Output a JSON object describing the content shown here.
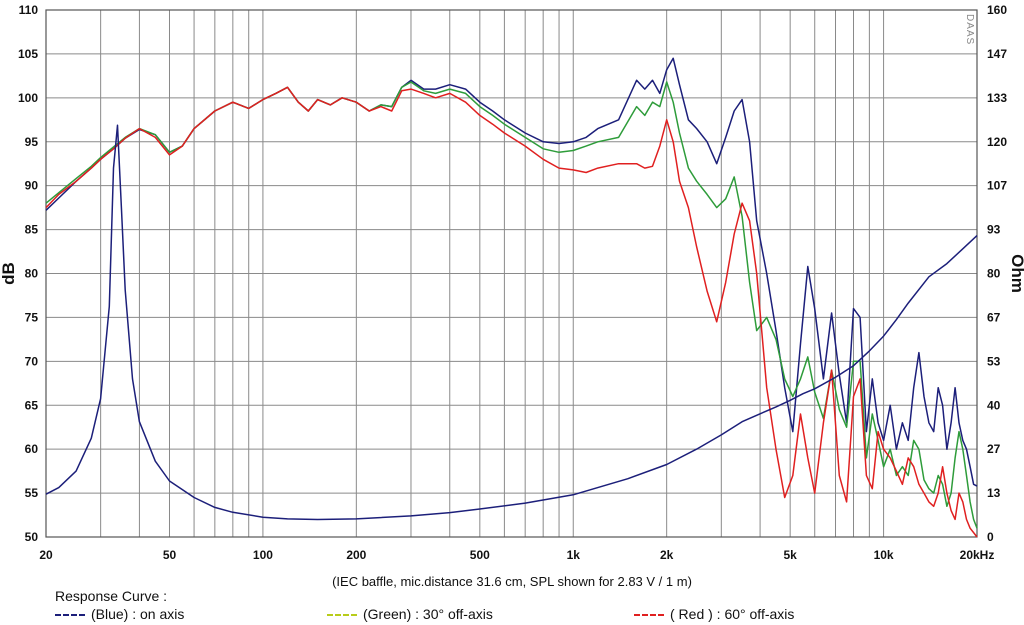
{
  "chart_data": {
    "type": "line",
    "ylabel": "dB",
    "y2label": "Ohm",
    "xlim": [
      20,
      20000
    ],
    "ylim": [
      50,
      110
    ],
    "y2lim": [
      0,
      160
    ],
    "x_scale": "log",
    "grid": true,
    "x_tick_labels": [
      {
        "value": 20,
        "label": "20"
      },
      {
        "value": 50,
        "label": "50"
      },
      {
        "value": 100,
        "label": "100"
      },
      {
        "value": 200,
        "label": "200"
      },
      {
        "value": 500,
        "label": "500"
      },
      {
        "value": 1000,
        "label": "1k"
      },
      {
        "value": 2000,
        "label": "2k"
      },
      {
        "value": 5000,
        "label": "5k"
      },
      {
        "value": 10000,
        "label": "10k"
      },
      {
        "value": 20000,
        "label": "20kHz"
      }
    ],
    "y_ticks": [
      "110",
      "105",
      "100",
      "95",
      "90",
      "85",
      "80",
      "75",
      "70",
      "65",
      "60",
      "55",
      "50"
    ],
    "y2_ticks": [
      "160",
      "147",
      "133",
      "120",
      "107",
      "93",
      "80",
      "67",
      "53",
      "40",
      "27",
      "13",
      "0"
    ],
    "series": [
      {
        "name": "on axis",
        "color": "#1c1f7a",
        "axis": "left",
        "x": [
          20,
          22,
          25,
          28,
          30,
          33,
          36,
          40,
          45,
          50,
          55,
          60,
          70,
          80,
          90,
          100,
          110,
          120,
          130,
          140,
          150,
          165,
          180,
          200,
          220,
          240,
          260,
          280,
          300,
          330,
          360,
          400,
          450,
          500,
          550,
          600,
          700,
          800,
          900,
          1000,
          1100,
          1200,
          1400,
          1600,
          1700,
          1800,
          1900,
          2000,
          2100,
          2200,
          2350,
          2500,
          2700,
          2900,
          3100,
          3300,
          3500,
          3700,
          3900,
          4200,
          4500,
          4800,
          5100,
          5400,
          5700,
          6000,
          6400,
          6800,
          7200,
          7600,
          8000,
          8400,
          8800,
          9200,
          9600,
          10000,
          10500,
          11000,
          11500,
          12000,
          12500,
          13000,
          13500,
          14000,
          14500,
          15000,
          15500,
          16000,
          16500,
          17000,
          17500,
          18000,
          18500,
          19000,
          19500,
          20000
        ],
        "y": [
          87.2,
          88.6,
          90.5,
          92,
          93,
          94.2,
          95.4,
          96.4,
          95.8,
          93.8,
          94.5,
          96.5,
          98.5,
          99.5,
          98.8,
          99.8,
          100.5,
          101.2,
          99.5,
          98.5,
          99.8,
          99.2,
          100,
          99.5,
          98.5,
          99.2,
          99,
          101.2,
          102,
          101,
          101,
          101.5,
          101,
          99.5,
          98.5,
          97.5,
          96,
          95,
          94.8,
          95,
          95.5,
          96.5,
          97.5,
          102,
          101,
          102,
          100.5,
          103.2,
          104.5,
          101.5,
          97.5,
          96.5,
          95,
          92.5,
          95.5,
          98.5,
          99.8,
          95,
          86,
          80,
          73.5,
          67,
          62,
          72,
          80.8,
          76,
          68,
          75.5,
          68.5,
          63,
          76,
          75,
          62,
          68,
          63,
          61,
          65,
          60,
          63,
          61,
          67,
          71,
          66,
          63,
          62,
          67,
          65,
          60,
          63,
          67,
          63,
          61,
          60,
          58,
          56,
          55.8
        ]
      },
      {
        "name": "30° off-axis",
        "color": "#2e9c3a",
        "axis": "left",
        "x": [
          20,
          22,
          25,
          28,
          30,
          33,
          36,
          40,
          45,
          50,
          55,
          60,
          70,
          80,
          90,
          100,
          110,
          120,
          130,
          140,
          150,
          165,
          180,
          200,
          220,
          240,
          260,
          280,
          300,
          330,
          360,
          400,
          450,
          500,
          550,
          600,
          700,
          800,
          900,
          1000,
          1100,
          1200,
          1400,
          1600,
          1700,
          1800,
          1900,
          2000,
          2100,
          2200,
          2350,
          2500,
          2700,
          2900,
          3100,
          3300,
          3500,
          3700,
          3900,
          4200,
          4500,
          4800,
          5100,
          5400,
          5700,
          6000,
          6400,
          6800,
          7200,
          7600,
          8000,
          8400,
          8800,
          9200,
          9600,
          10000,
          10500,
          11000,
          11500,
          12000,
          12500,
          13000,
          13500,
          14000,
          14500,
          15000,
          15500,
          16000,
          16500,
          17000,
          17500,
          18000,
          18500,
          19000,
          19500,
          20000
        ],
        "y": [
          88,
          89.2,
          90.8,
          92.2,
          93.2,
          94.4,
          95.5,
          96.5,
          95.8,
          93.8,
          94.5,
          96.5,
          98.5,
          99.5,
          98.8,
          99.8,
          100.5,
          101.2,
          99.5,
          98.5,
          99.8,
          99.2,
          100,
          99.5,
          98.5,
          99.2,
          99,
          101.2,
          101.8,
          100.8,
          100.5,
          101,
          100.5,
          99,
          98,
          97,
          95.5,
          94.2,
          93.8,
          94,
          94.5,
          95,
          95.5,
          99,
          98,
          99.5,
          99,
          101.8,
          99.5,
          96,
          92,
          90.5,
          89,
          87.5,
          88.5,
          91,
          86.5,
          79,
          73.5,
          75,
          72.5,
          68,
          66,
          68,
          70.5,
          66.5,
          63.5,
          69,
          64.5,
          62.5,
          70,
          70,
          59,
          64,
          61,
          58,
          60,
          57,
          58,
          57,
          61,
          60,
          56.5,
          55.5,
          55,
          57,
          56,
          53.5,
          55,
          59,
          62,
          60,
          57,
          54,
          52,
          51
        ]
      },
      {
        "name": "60° off-axis",
        "color": "#e02020",
        "axis": "left",
        "x": [
          20,
          22,
          25,
          28,
          30,
          33,
          36,
          40,
          45,
          50,
          55,
          60,
          70,
          80,
          90,
          100,
          110,
          120,
          130,
          140,
          150,
          165,
          180,
          200,
          220,
          240,
          260,
          280,
          300,
          330,
          360,
          400,
          450,
          500,
          550,
          600,
          700,
          800,
          900,
          1000,
          1100,
          1200,
          1400,
          1600,
          1700,
          1800,
          1900,
          2000,
          2100,
          2200,
          2350,
          2500,
          2700,
          2900,
          3100,
          3300,
          3500,
          3700,
          3900,
          4200,
          4500,
          4800,
          5100,
          5400,
          5700,
          6000,
          6400,
          6800,
          7200,
          7600,
          8000,
          8400,
          8800,
          9200,
          9600,
          10000,
          10500,
          11000,
          11500,
          12000,
          12500,
          13000,
          13500,
          14000,
          14500,
          15000,
          15500,
          16000,
          16500,
          17000,
          17500,
          18000,
          18500,
          19000,
          19500,
          20000
        ],
        "y": [
          87.5,
          89,
          90.5,
          92,
          93,
          94.2,
          95.4,
          96.5,
          95.5,
          93.5,
          94.5,
          96.5,
          98.5,
          99.5,
          98.8,
          99.8,
          100.5,
          101.2,
          99.5,
          98.5,
          99.8,
          99.2,
          100,
          99.5,
          98.5,
          99,
          98.5,
          100.8,
          101,
          100.5,
          100,
          100.5,
          99.5,
          98,
          97,
          96,
          94.5,
          93,
          92,
          91.8,
          91.5,
          92,
          92.5,
          92.5,
          92,
          92.2,
          94.5,
          97.5,
          95,
          90.5,
          87.5,
          83,
          78,
          74.5,
          79,
          84.5,
          88,
          86,
          80,
          67,
          60,
          54.5,
          57,
          64,
          59,
          55,
          63,
          69,
          57,
          54,
          66,
          68,
          57,
          55.5,
          62,
          60,
          59,
          57.5,
          56,
          59,
          58,
          56,
          55,
          54,
          53.5,
          55,
          58,
          55,
          53,
          52,
          55,
          54,
          52,
          51,
          50.5,
          50
        ]
      },
      {
        "name": "impedance",
        "color": "#1c1f7a",
        "axis": "right",
        "x": [
          20,
          22,
          25,
          28,
          30,
          32,
          33,
          34,
          35,
          36,
          38,
          40,
          45,
          50,
          60,
          70,
          80,
          100,
          120,
          150,
          200,
          300,
          400,
          500,
          700,
          1000,
          1500,
          2000,
          2500,
          3000,
          3500,
          4000,
          4500,
          5000,
          5500,
          6000,
          7000,
          8000,
          9000,
          10000,
          11000,
          12000,
          14000,
          16000,
          18000,
          20000
        ],
        "y": [
          13,
          15,
          20,
          30,
          42,
          70,
          112,
          125,
          100,
          75,
          48,
          35,
          23,
          17,
          12,
          9,
          7.5,
          6,
          5.5,
          5.3,
          5.5,
          6.4,
          7.4,
          8.5,
          10.3,
          12.8,
          17.7,
          22,
          26.7,
          31,
          35,
          37.4,
          39.5,
          41.5,
          43.5,
          45,
          48.5,
          52,
          56.5,
          61,
          66,
          71,
          79,
          83,
          87.5,
          91.5
        ]
      }
    ]
  },
  "labels": {
    "ylabel": "dB",
    "y2label": "Ohm",
    "brand": "DAAS",
    "note": "(IEC baffle, mic.distance 31.6 cm, SPL shown for 2.83 V / 1 m)",
    "legend_title": "Response Curve :",
    "legend": [
      {
        "text": "(Blue)  : on axis",
        "color": "#1c1f7a"
      },
      {
        "text": "(Green) : 30° off-axis",
        "color": "#b8cc1a"
      },
      {
        "text": "( Red ) : 60° off-axis",
        "color": "#e02020"
      }
    ]
  }
}
